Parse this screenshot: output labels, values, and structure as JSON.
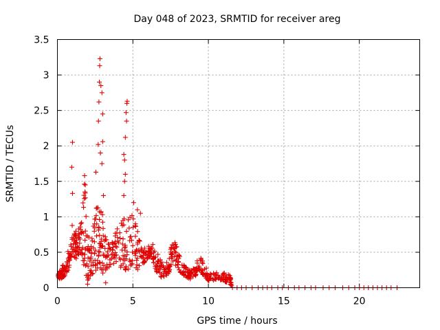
{
  "chart_data": {
    "type": "scatter",
    "title": "Day 048 of 2023, SRMTID for receiver areg",
    "xlabel": "GPS time / hours",
    "ylabel": "SRMTID / TECUs",
    "xlim": [
      0,
      24
    ],
    "ylim": [
      0,
      3.5
    ],
    "x_ticks": [
      0,
      5,
      10,
      15,
      20
    ],
    "x_tick_labels": [
      "0",
      "5",
      "10",
      "15",
      "20"
    ],
    "y_ticks": [
      0,
      0.5,
      1,
      1.5,
      2,
      2.5,
      3,
      3.5
    ],
    "y_tick_labels": [
      "0",
      "0.5",
      "1",
      "1.5",
      "2",
      "2.5",
      "3",
      "3.5"
    ],
    "grid": true,
    "marker": "+",
    "color": "#e00000",
    "series": [
      {
        "name": "SRMTID",
        "envelope": [
          [
            0.0,
            0.15,
            0.22
          ],
          [
            0.2,
            0.12,
            0.3
          ],
          [
            0.4,
            0.15,
            0.32
          ],
          [
            0.6,
            0.18,
            0.4
          ],
          [
            0.8,
            0.3,
            0.7
          ],
          [
            1.0,
            0.45,
            0.95
          ],
          [
            1.2,
            0.4,
            0.8
          ],
          [
            1.4,
            0.45,
            0.85
          ],
          [
            1.6,
            0.5,
            1.0
          ],
          [
            1.8,
            0.25,
            1.5
          ],
          [
            2.0,
            0.1,
            0.9
          ],
          [
            2.2,
            0.15,
            0.6
          ],
          [
            2.4,
            0.2,
            0.9
          ],
          [
            2.6,
            0.25,
            1.2
          ],
          [
            2.8,
            0.3,
            1.3
          ],
          [
            3.0,
            0.2,
            1.1
          ],
          [
            3.2,
            0.25,
            0.7
          ],
          [
            3.5,
            0.3,
            0.6
          ],
          [
            3.8,
            0.35,
            0.75
          ],
          [
            4.1,
            0.3,
            0.9
          ],
          [
            4.4,
            0.25,
            1.0
          ],
          [
            4.7,
            0.25,
            1.0
          ],
          [
            5.0,
            0.3,
            1.1
          ],
          [
            5.3,
            0.25,
            0.8
          ],
          [
            5.6,
            0.3,
            0.6
          ],
          [
            5.9,
            0.4,
            0.55
          ],
          [
            6.2,
            0.45,
            0.65
          ],
          [
            6.5,
            0.25,
            0.55
          ],
          [
            6.8,
            0.15,
            0.4
          ],
          [
            7.1,
            0.15,
            0.35
          ],
          [
            7.4,
            0.2,
            0.4
          ],
          [
            7.6,
            0.35,
            0.7
          ],
          [
            7.9,
            0.3,
            0.6
          ],
          [
            8.2,
            0.2,
            0.4
          ],
          [
            8.5,
            0.15,
            0.3
          ],
          [
            8.8,
            0.12,
            0.25
          ],
          [
            9.1,
            0.15,
            0.3
          ],
          [
            9.4,
            0.25,
            0.45
          ],
          [
            9.7,
            0.15,
            0.35
          ],
          [
            10.0,
            0.1,
            0.22
          ],
          [
            10.5,
            0.1,
            0.22
          ],
          [
            11.0,
            0.1,
            0.22
          ],
          [
            11.4,
            0.05,
            0.18
          ],
          [
            11.6,
            0.0,
            0.06
          ]
        ],
        "spikes": [
          [
            1.0,
            2.05
          ],
          [
            0.95,
            1.7
          ],
          [
            1.0,
            1.33
          ],
          [
            1.8,
            1.58
          ],
          [
            1.85,
            1.45
          ],
          [
            2.55,
            1.63
          ],
          [
            2.7,
            2.02
          ],
          [
            2.72,
            2.35
          ],
          [
            2.75,
            2.62
          ],
          [
            2.78,
            2.9
          ],
          [
            2.8,
            3.13
          ],
          [
            2.82,
            3.23
          ],
          [
            2.88,
            2.85
          ],
          [
            2.95,
            2.75
          ],
          [
            3.0,
            2.45
          ],
          [
            3.0,
            2.06
          ],
          [
            2.85,
            1.9
          ],
          [
            2.95,
            1.75
          ],
          [
            3.05,
            1.3
          ],
          [
            4.4,
            1.88
          ],
          [
            4.45,
            1.8
          ],
          [
            4.5,
            2.12
          ],
          [
            4.55,
            2.47
          ],
          [
            4.6,
            2.6
          ],
          [
            4.62,
            2.63
          ],
          [
            4.58,
            2.35
          ],
          [
            4.5,
            1.6
          ],
          [
            4.45,
            1.5
          ],
          [
            4.4,
            1.3
          ],
          [
            3.2,
            0.07
          ],
          [
            2.0,
            0.05
          ],
          [
            5.05,
            1.2
          ],
          [
            5.3,
            1.1
          ],
          [
            5.5,
            1.05
          ]
        ],
        "zeros_x": [
          11.9,
          12.2,
          12.5,
          12.9,
          13.3,
          13.6,
          13.9,
          14.2,
          14.6,
          14.9,
          15.3,
          15.7,
          16.0,
          16.4,
          16.8,
          17.1,
          17.6,
          18.0,
          18.4,
          18.9,
          19.3,
          19.7,
          20.0,
          20.3,
          20.6,
          20.9,
          21.2,
          21.5,
          21.8,
          22.1,
          22.5
        ]
      }
    ]
  }
}
